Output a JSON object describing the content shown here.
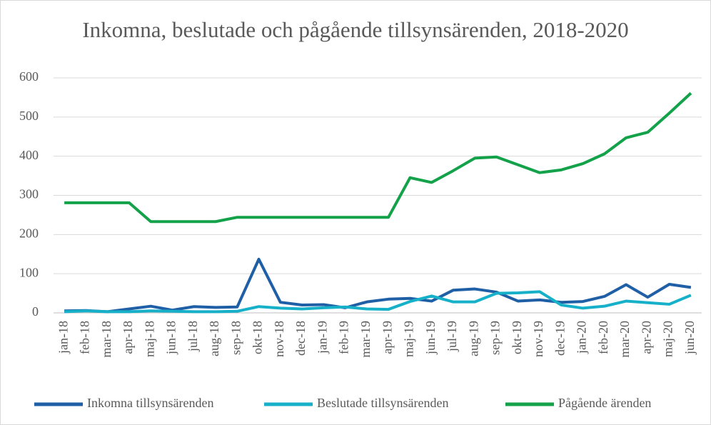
{
  "chart_data": {
    "type": "line",
    "title": "Inkomna, beslutade och pågående tillsynsärenden, 2018-2020",
    "categories": [
      "jan-18",
      "feb-18",
      "mar-18",
      "apr-18",
      "maj-18",
      "jun-18",
      "jul-18",
      "aug-18",
      "sep-18",
      "okt-18",
      "nov-18",
      "dec-18",
      "jan-19",
      "feb-19",
      "mar-19",
      "apr-19",
      "maj-19",
      "jun-19",
      "jul-19",
      "aug-19",
      "sep-19",
      "okt-19",
      "nov-19",
      "dec-19",
      "jan-20",
      "feb-20",
      "mar-20",
      "apr-20",
      "maj-20",
      "jun-20"
    ],
    "series": [
      {
        "name": "Inkomna tillsynsärenden",
        "color": "#1f5fa6",
        "values": [
          5,
          6,
          3,
          10,
          17,
          7,
          16,
          14,
          15,
          137,
          27,
          20,
          21,
          13,
          28,
          35,
          37,
          30,
          58,
          61,
          53,
          30,
          33,
          27,
          29,
          42,
          72,
          40,
          73,
          65
        ]
      },
      {
        "name": "Beslutade tillsynsärenden",
        "color": "#17b0c9",
        "values": [
          3,
          5,
          3,
          3,
          5,
          4,
          3,
          3,
          4,
          16,
          12,
          10,
          13,
          15,
          10,
          9,
          29,
          43,
          28,
          28,
          50,
          51,
          54,
          20,
          12,
          17,
          30,
          26,
          22,
          45
        ]
      },
      {
        "name": "Pågående ärenden",
        "color": "#13a24a",
        "values": [
          281,
          281,
          281,
          281,
          233,
          233,
          233,
          233,
          244,
          244,
          244,
          244,
          244,
          244,
          244,
          244,
          345,
          333,
          363,
          395,
          398,
          378,
          358,
          365,
          381,
          406,
          447,
          461,
          510,
          561
        ]
      }
    ],
    "ylim": [
      0,
      600
    ],
    "yticks": [
      0,
      100,
      200,
      300,
      400,
      500,
      600
    ],
    "grid": true,
    "legend": "bottom"
  }
}
